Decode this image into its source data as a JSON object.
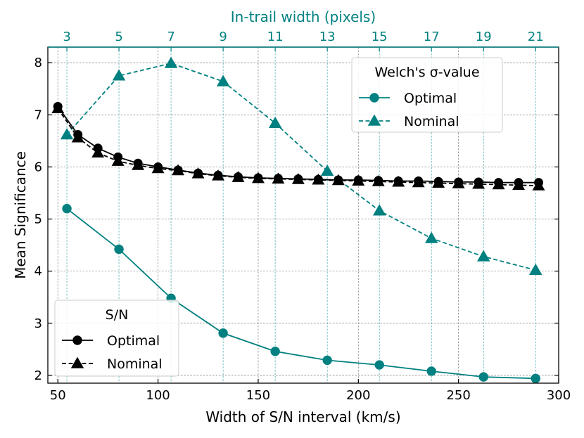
{
  "chart_data": {
    "type": "line",
    "xlabel": "Width of S/N interval (km/s)",
    "ylabel": "Mean Significance",
    "top_xlabel": "In-trail width (pixels)",
    "xlim": [
      45,
      300
    ],
    "ylim": [
      1.85,
      8.3
    ],
    "xticks": [
      50,
      100,
      150,
      200,
      250,
      300
    ],
    "yticks": [
      2,
      3,
      4,
      5,
      6,
      7,
      8
    ],
    "xtick_labels": [
      "50",
      "100",
      "150",
      "200",
      "250",
      "300"
    ],
    "ytick_labels": [
      "2",
      "3",
      "4",
      "5",
      "6",
      "7",
      "8"
    ],
    "top_ticks": [
      {
        "label": "3",
        "x": 54.5
      },
      {
        "label": "5",
        "x": 80.5
      },
      {
        "label": "7",
        "x": 106.5
      },
      {
        "label": "9",
        "x": 132.5
      },
      {
        "label": "11",
        "x": 158.5
      },
      {
        "label": "13",
        "x": 184.5
      },
      {
        "label": "15",
        "x": 210.5
      },
      {
        "label": "17",
        "x": 236.5
      },
      {
        "label": "19",
        "x": 262.5
      },
      {
        "label": "21",
        "x": 288.5
      }
    ],
    "grid": true,
    "colors": {
      "welch": "#008080",
      "sn": "#000000"
    },
    "series": [
      {
        "name": "Welch Optimal",
        "group": "welch",
        "color": "#008080",
        "style": "solid",
        "marker": "circle",
        "x": [
          54.5,
          80.5,
          106.5,
          132.5,
          158.5,
          184.5,
          210.5,
          236.5,
          262.5,
          288.5
        ],
        "y": [
          5.2,
          4.42,
          3.48,
          2.81,
          2.46,
          2.29,
          2.2,
          2.08,
          1.97,
          1.94
        ]
      },
      {
        "name": "Welch Nominal",
        "group": "welch",
        "color": "#008080",
        "style": "dashed",
        "marker": "triangle",
        "x": [
          54.5,
          80.5,
          106.5,
          132.5,
          158.5,
          184.5,
          210.5,
          236.5,
          262.5,
          288.5
        ],
        "y": [
          6.62,
          7.75,
          7.99,
          7.64,
          6.84,
          5.92,
          5.16,
          4.63,
          4.28,
          4.02
        ]
      },
      {
        "name": "S/N Optimal",
        "group": "sn",
        "color": "#000000",
        "style": "solid",
        "marker": "circle",
        "x": [
          50,
          60,
          70,
          80,
          90,
          100,
          110,
          120,
          130,
          140,
          150,
          160,
          170,
          180,
          190,
          200,
          210,
          220,
          230,
          240,
          250,
          260,
          270,
          280,
          290
        ],
        "y": [
          7.16,
          6.62,
          6.36,
          6.19,
          6.07,
          6.0,
          5.94,
          5.88,
          5.84,
          5.81,
          5.79,
          5.78,
          5.77,
          5.76,
          5.75,
          5.75,
          5.74,
          5.73,
          5.73,
          5.72,
          5.71,
          5.71,
          5.7,
          5.7,
          5.7
        ]
      },
      {
        "name": "S/N Nominal",
        "group": "sn",
        "color": "#000000",
        "style": "dashed",
        "marker": "triangle",
        "x": [
          50,
          60,
          70,
          80,
          90,
          100,
          110,
          120,
          130,
          140,
          150,
          160,
          170,
          180,
          190,
          200,
          210,
          220,
          230,
          240,
          250,
          260,
          270,
          280,
          290
        ],
        "y": [
          7.12,
          6.56,
          6.27,
          6.11,
          6.03,
          5.97,
          5.93,
          5.87,
          5.83,
          5.8,
          5.78,
          5.77,
          5.76,
          5.75,
          5.74,
          5.73,
          5.72,
          5.71,
          5.7,
          5.69,
          5.68,
          5.67,
          5.66,
          5.65,
          5.64
        ]
      }
    ],
    "legends": [
      {
        "title": "Welch's σ-value",
        "placement": "top-right",
        "entries": [
          {
            "label": "Optimal",
            "color": "#008080",
            "style": "solid",
            "marker": "circle"
          },
          {
            "label": "Nominal",
            "color": "#008080",
            "style": "dashed",
            "marker": "triangle"
          }
        ]
      },
      {
        "title": "S/N",
        "placement": "bottom-left",
        "entries": [
          {
            "label": "Optimal",
            "color": "#000000",
            "style": "solid",
            "marker": "circle"
          },
          {
            "label": "Nominal",
            "color": "#000000",
            "style": "dashed",
            "marker": "triangle"
          }
        ]
      }
    ]
  }
}
